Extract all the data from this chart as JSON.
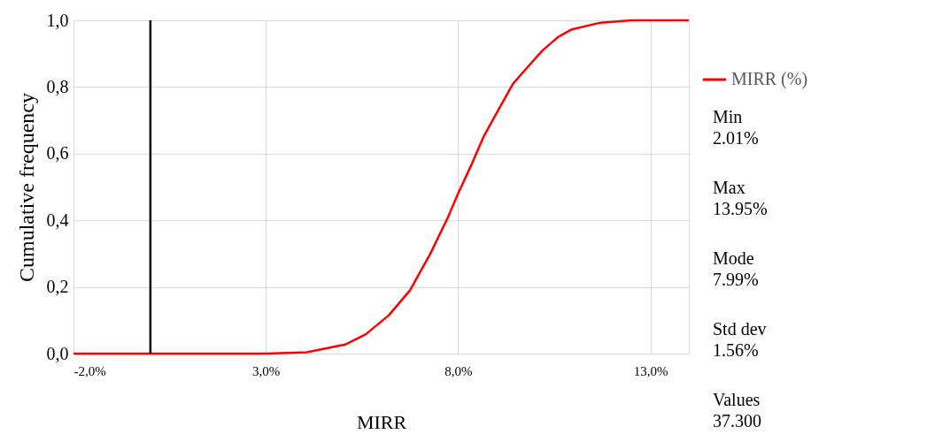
{
  "chart_data": {
    "type": "line",
    "xlabel": "MIRR",
    "ylabel": "Cumulative frequency",
    "x": [
      -2,
      3,
      4.06,
      5.06,
      5.6,
      6.2,
      6.75,
      7.28,
      7.74,
      8.0,
      8.36,
      8.66,
      9.04,
      9.43,
      9.81,
      10.2,
      10.6,
      10.96,
      11.7,
      12.5,
      14
    ],
    "series": [
      {
        "name": "MIRR (%)",
        "color": "#ff0000",
        "values": [
          0,
          0,
          0.004,
          0.027,
          0.058,
          0.115,
          0.19,
          0.3,
          0.41,
          0.48,
          0.57,
          0.65,
          0.73,
          0.81,
          0.86,
          0.91,
          0.95,
          0.973,
          0.993,
          1.0,
          1.0
        ]
      }
    ],
    "xlim": [
      -2,
      14
    ],
    "xticks": [
      {
        "value": -2,
        "label": "-2,0%"
      },
      {
        "value": 3,
        "label": "3,0%"
      },
      {
        "value": 8,
        "label": "8,0%"
      },
      {
        "value": 13,
        "label": "13,0%"
      }
    ],
    "ylim": [
      0,
      1
    ],
    "yticks": [
      {
        "value": 0,
        "label": "0,0"
      },
      {
        "value": 0.2,
        "label": "0,2"
      },
      {
        "value": 0.4,
        "label": "0,4"
      },
      {
        "value": 0.6,
        "label": "0,6"
      },
      {
        "value": 0.8,
        "label": "0,8"
      },
      {
        "value": 1,
        "label": "1,0"
      }
    ],
    "ref_lines": [
      {
        "axis": "x",
        "value": 0,
        "color": "#000000"
      }
    ],
    "annotations": [
      "Min\n2.01%",
      "Max\n13.95%",
      "Mode\n7.99%",
      "Std dev\n1.56%",
      "Values\n37.300"
    ],
    "grid": true,
    "legend": "top right",
    "marker": "none",
    "line_style": "solid"
  }
}
